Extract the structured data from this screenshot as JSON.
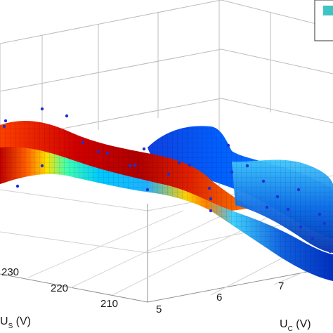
{
  "chart_data": {
    "type": "surface",
    "xlabel": "U_C (V)",
    "xlabel_main": "U",
    "xlabel_sub": "C",
    "xlabel_unit": " (V)",
    "ylabel": "U_S (V)",
    "ylabel_main": "U",
    "ylabel_sub": "S",
    "ylabel_unit": " (V)",
    "x_ticks": [
      "5",
      "6",
      "7"
    ],
    "y_ticks": [
      "230",
      "220",
      "210"
    ],
    "grid": true,
    "legend": "top-right",
    "colormap": [
      "#00008f",
      "#0060ff",
      "#00e0ff",
      "#80ff80",
      "#ffe000",
      "#ff4000",
      "#800000"
    ],
    "legend_swatch_color": "#3fc4c4",
    "sample_point_color": "#1f2fd6",
    "surface_points": [
      {
        "x": 5.0,
        "y": 235,
        "z": 0.95
      },
      {
        "x": 5.5,
        "y": 228,
        "z": 0.85
      },
      {
        "x": 6.0,
        "y": 222,
        "z": 0.72
      },
      {
        "x": 6.5,
        "y": 216,
        "z": 0.55
      },
      {
        "x": 7.0,
        "y": 212,
        "z": 0.35
      },
      {
        "x": 7.5,
        "y": 208,
        "z": 0.2
      }
    ],
    "sample_points_count": 32
  }
}
